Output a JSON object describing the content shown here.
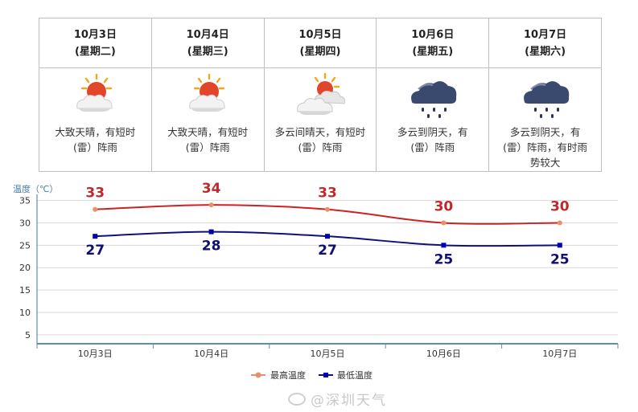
{
  "forecast": {
    "days": [
      {
        "date": "10月3日",
        "weekday": "(星期二)",
        "icon": "sun-cloud-icon",
        "desc": [
          "大致天晴，有短时",
          "(雷）阵雨"
        ]
      },
      {
        "date": "10月4日",
        "weekday": "(星期三)",
        "icon": "sun-cloud-icon",
        "desc": [
          "大致天晴，有短时",
          "(雷）阵雨"
        ]
      },
      {
        "date": "10月5日",
        "weekday": "(星期四)",
        "icon": "cloudy-sunny-icon",
        "desc": [
          "多云间晴天，有短时",
          "(雷）阵雨"
        ]
      },
      {
        "date": "10月6日",
        "weekday": "(星期五)",
        "icon": "rain-cloud-icon",
        "desc": [
          "多云到阴天，有",
          "(雷）阵雨"
        ]
      },
      {
        "date": "10月7日",
        "weekday": "(星期六)",
        "icon": "rain-cloud-icon",
        "desc": [
          "多云到阴天，有",
          "(雷）阵雨，有时雨",
          "势较大"
        ]
      }
    ]
  },
  "chart_data": {
    "type": "line",
    "ylabel": "温度（℃）",
    "categories": [
      "10月3日",
      "10月4日",
      "10月5日",
      "10月6日",
      "10月7日"
    ],
    "yticks": [
      5,
      10,
      15,
      20,
      25,
      30,
      35
    ],
    "ylim": [
      3,
      36
    ],
    "grid": true,
    "legend_position": "bottom-center",
    "series": [
      {
        "name": "最高温度",
        "values": [
          33,
          34,
          33,
          30,
          30
        ],
        "color": "#cc2222",
        "marker_color": "#e8906a",
        "label_color": "#c0282b"
      },
      {
        "name": "最低温度",
        "values": [
          27,
          28,
          27,
          25,
          25
        ],
        "color": "#10107a",
        "marker_color": "#0000b0",
        "label_color": "#101070"
      }
    ]
  },
  "watermark": {
    "text": "@深圳天气"
  },
  "colors": {
    "axis": "#5a8fb0",
    "grid": "#d9d9d9",
    "ylabel": "#4a7fa8"
  }
}
